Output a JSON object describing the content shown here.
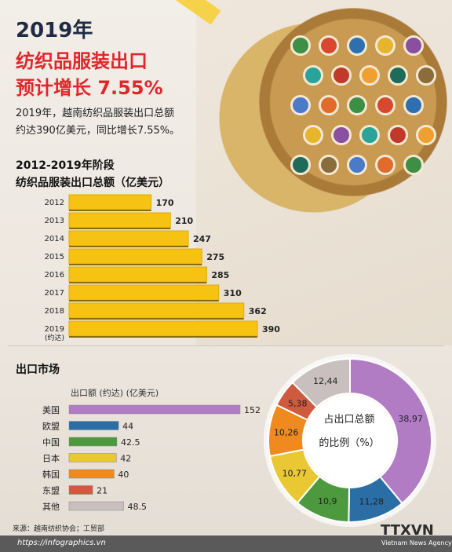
{
  "header": {
    "year_title": "2019年",
    "title_line1": "纺织品服装出口",
    "title_line2": "预计增长 7.55%",
    "intro_line1": "2019年，越南纺织品服装出口总额",
    "intro_line2": "约达390亿美元，同比增长7.55%。"
  },
  "section1": {
    "period": "2012-2019年阶段",
    "title": "纺织品服装出口总额（亿美元）"
  },
  "section2": {
    "title": "出口市场",
    "bar_title": "出口额 (约达) (亿美元)",
    "donut_center_line1": "占出口总额",
    "donut_center_line2": "的比例（%）"
  },
  "footer": {
    "source": "来源：越南纺织协会；工贸部",
    "url": "https://infographics.vn",
    "logo": "TTXVN",
    "logo_caption": "Vietnam News Agency"
  },
  "colors": {
    "bar_gold": "#f6c313",
    "bar_gold_dark": "#e0ab00",
    "title_red": "#e0262b"
  },
  "chart_data": [
    {
      "type": "bar",
      "orientation": "horizontal",
      "categories": [
        "2012",
        "2013",
        "2014",
        "2015",
        "2016",
        "2017",
        "2018",
        "2019"
      ],
      "category_notes": [
        "",
        "",
        "",
        "",
        "",
        "",
        "",
        "(约达)"
      ],
      "values": [
        170,
        210,
        247,
        275,
        285,
        310,
        362,
        390
      ],
      "title": "纺织品服装出口总额（亿美元）",
      "color": "#f6c313",
      "grid": false
    },
    {
      "type": "bar",
      "orientation": "horizontal",
      "categories": [
        "美国",
        "欧盟",
        "中国",
        "日本",
        "韩国",
        "东盟",
        "其他"
      ],
      "values": [
        152,
        44,
        42.5,
        42,
        40,
        21,
        48.5
      ],
      "value_labels": [
        "152",
        "44",
        "42.5",
        "42",
        "40",
        "21",
        "48.5"
      ],
      "colors": [
        "#b17cc4",
        "#2b6ea5",
        "#4d9a3e",
        "#e9c834",
        "#ef8a1f",
        "#cf5b3f",
        "#c9bfbf"
      ],
      "title": "出口额 (约达) (亿美元)",
      "grid": false
    },
    {
      "type": "pie",
      "donut": true,
      "labels": [
        "美国",
        "欧盟",
        "中国",
        "日本",
        "韩国",
        "东盟",
        "其他"
      ],
      "values": [
        38.97,
        11.28,
        10.9,
        10.77,
        10.26,
        5.38,
        12.44
      ],
      "value_labels": [
        "38,97",
        "11,28",
        "10,9",
        "10,77",
        "10,26",
        "5,38",
        "12,44"
      ],
      "colors": [
        "#b17cc4",
        "#2b6ea5",
        "#4d9a3e",
        "#e9c834",
        "#ef8a1f",
        "#cf5b3f",
        "#c9bfbf"
      ],
      "start": "top",
      "direction": "clockwise"
    }
  ]
}
